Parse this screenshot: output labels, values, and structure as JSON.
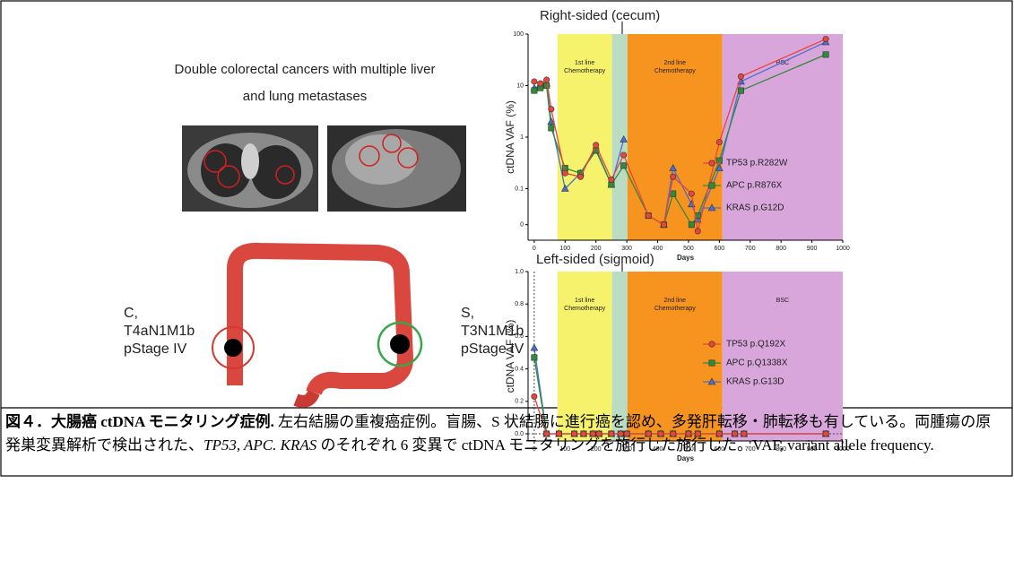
{
  "figure": {
    "title_lines": [
      "Double colorectal cancers with multiple liver",
      "and lung metastases"
    ],
    "left_label": [
      "C,",
      "T4aN1M1b",
      "pStage IV"
    ],
    "right_label": [
      "S,",
      "T3N1M1b",
      "pStage IV"
    ]
  },
  "caption": [
    {
      "text": "図４．大腸癌 ctDNA モニタリング症例.",
      "style": "bold"
    },
    {
      "text": " 左右結腸の重複癌症例。盲腸、S 状結腸に進行癌を認め、多発肝転移・肺転移も有している。両腫瘍の原発巣変異解析で検出された、",
      "style": "normal"
    },
    {
      "text": "TP53, APC. KRAS",
      "style": "italic"
    },
    {
      "text": " のそれぞれ 6 変異で ctDNA モニタリングを施行した施行した。VAF, variant allele frequency.",
      "style": "normal"
    }
  ],
  "chart_data": [
    {
      "type": "line",
      "title": "Right-sided (cecum)",
      "x_label": "Days",
      "y_label": "ctDNA VAF (%)",
      "log_y": true,
      "xlim": [
        -20,
        1000
      ],
      "xticks": [
        0,
        100,
        200,
        300,
        400,
        500,
        600,
        700,
        800,
        900,
        1000
      ],
      "ylim": [
        0.01,
        100
      ],
      "yticks": [
        100,
        10,
        1,
        0.1,
        {
          "value": 0.02,
          "label": "0"
        }
      ],
      "legend": "right",
      "phases": [
        {
          "label": [
            "1st line",
            "Chemotherapy"
          ],
          "start": 75,
          "end": 252,
          "color": "#f6f26c"
        },
        {
          "start": 252,
          "end": 302,
          "color": "#b9dcc3"
        },
        {
          "label": [
            "2nd line",
            "Chemotherapy"
          ],
          "start": 302,
          "end": 610,
          "color": "#f7941f"
        },
        {
          "label": [
            "BSC"
          ],
          "start": 610,
          "end": 1000,
          "color": "#d9a6dc"
        }
      ],
      "x": [
        0,
        20,
        40,
        55,
        100,
        150,
        200,
        250,
        290,
        370,
        420,
        450,
        510,
        530,
        600,
        670,
        945
      ],
      "series": [
        {
          "name": "TP53 p.R282W",
          "color": "#e8453c",
          "marker": "circle",
          "values": [
            12,
            11,
            13,
            3.5,
            0.2,
            0.17,
            0.7,
            0.15,
            0.45,
            0.03,
            0.02,
            0.17,
            0.08,
            0.015,
            0.8,
            15,
            80
          ]
        },
        {
          "name": "APC p.R876X",
          "color": "#2f8a3c",
          "marker": "square",
          "values": [
            8,
            9,
            10,
            1.5,
            0.25,
            0.2,
            0.55,
            0.12,
            0.28,
            0.03,
            0.02,
            0.08,
            0.02,
            0.03,
            0.35,
            8,
            40
          ]
        },
        {
          "name": "KRAS p.G12D",
          "color": "#4a6fd0",
          "marker": "triangle",
          "values": [
            9,
            10,
            11,
            2,
            0.1,
            0.2,
            0.6,
            0.12,
            0.9,
            null,
            0.02,
            0.25,
            0.05,
            0.025,
            0.25,
            12,
            70
          ]
        }
      ]
    },
    {
      "type": "line",
      "title": "Left-sided (sigmoid)",
      "x_label": "Days",
      "y_label": "ctDNA VAF (%)",
      "log_y": false,
      "zero_lines": true,
      "xlim": [
        -20,
        1000
      ],
      "xticks": [
        0,
        100,
        200,
        300,
        400,
        500,
        600,
        700,
        800,
        900,
        1000
      ],
      "ylim": [
        0,
        1
      ],
      "yticks": [
        {
          "value": 0,
          "label": "0.0"
        },
        0.2,
        0.4,
        0.6,
        0.8,
        {
          "value": 1,
          "label": "1.0"
        }
      ],
      "legend": "right",
      "phases": [
        {
          "label": [
            "1st line",
            "Chemotherapy"
          ],
          "start": 75,
          "end": 252,
          "color": "#f6f26c"
        },
        {
          "start": 252,
          "end": 302,
          "color": "#b9dcc3"
        },
        {
          "label": [
            "2nd line",
            "Chemotherapy"
          ],
          "start": 302,
          "end": 610,
          "color": "#f7941f"
        },
        {
          "label": [
            "BSC"
          ],
          "start": 610,
          "end": 1000,
          "color": "#d9a6dc"
        }
      ],
      "x": [
        0,
        40,
        80,
        130,
        160,
        190,
        210,
        250,
        280,
        300,
        370,
        410,
        450,
        500,
        530,
        600,
        650,
        680,
        945
      ],
      "series": [
        {
          "name": "TP53 p.Q192X",
          "color": "#e8453c",
          "marker": "circle",
          "values": [
            0.23,
            0,
            0,
            0,
            0,
            0,
            0,
            0,
            0,
            0,
            0,
            0,
            0,
            0,
            0,
            0,
            0,
            0,
            0
          ]
        },
        {
          "name": "APC p.Q1338X",
          "color": "#2f8a3c",
          "marker": "square",
          "values": [
            0.47,
            0,
            0,
            0,
            0,
            0,
            0,
            0,
            0,
            0,
            0,
            0,
            0,
            0,
            0,
            0,
            0,
            0,
            0
          ]
        },
        {
          "name": "KRAS p.G13D",
          "color": "#4a6fd0",
          "marker": "triangle",
          "values": [
            0.53,
            0,
            0,
            0,
            0,
            0,
            0,
            0,
            0,
            0,
            0,
            0,
            0,
            0,
            0,
            0,
            0,
            0,
            0
          ]
        }
      ]
    }
  ]
}
